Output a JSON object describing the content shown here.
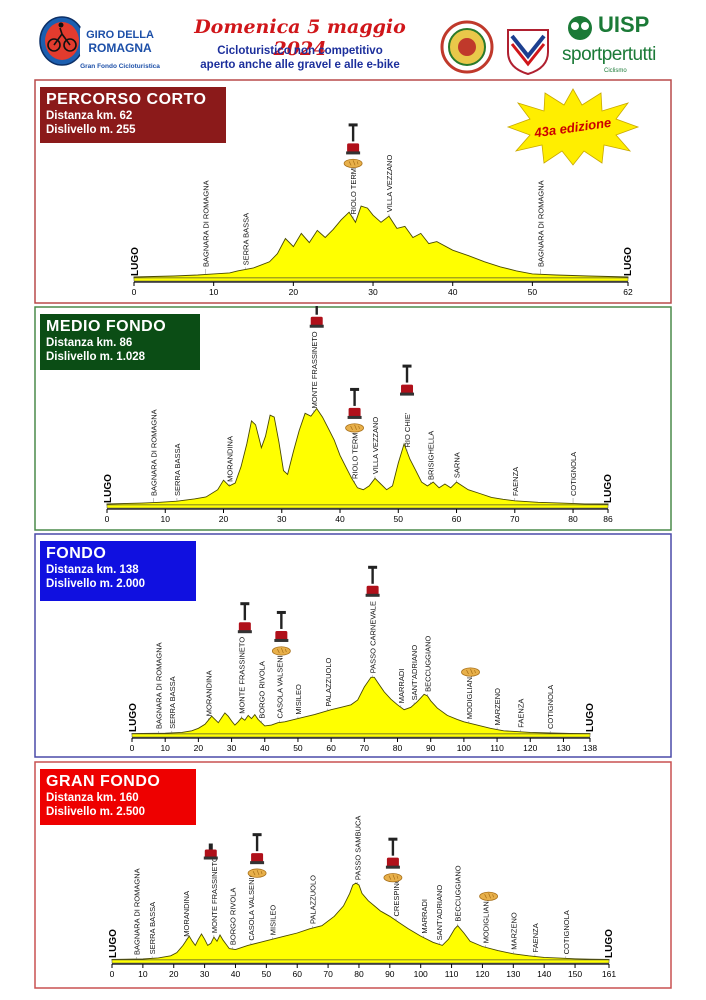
{
  "header": {
    "logo_text": "GIRO DELLA ROMAGNA",
    "logo_subtext": "Gran Fondo Cicloturistica",
    "date": "Domenica 5 maggio 2024",
    "subtitle_line1": "Cicloturistico non competitivo",
    "subtitle_line2": "aperto anche alle gravel e alle e-bike",
    "uisp_word": "UISP",
    "uisp_tagline": "sportpertutti",
    "uisp_small": "Ciclismo"
  },
  "badge": {
    "edition": "43a edizione",
    "color": "#ffee00",
    "text_color": "#cc0000"
  },
  "colors": {
    "profile_fill": "#ffff00",
    "profile_stroke": "#4a4a00",
    "axis": "#000000"
  },
  "chart_data": [
    {
      "type": "area",
      "title": "PERCORSO CORTO",
      "distance": "Distanza km. 62",
      "elevation_gain": "Dislivello  m. 255",
      "panel_color": "#8b1a1a",
      "border_color": "#b84a4a",
      "start_label": "LUGO",
      "end_label": "LUGO",
      "xlim": [
        0,
        62
      ],
      "ticks": [
        0,
        10,
        20,
        30,
        40,
        50,
        62
      ],
      "profile_max": 160,
      "profile": [
        [
          0,
          2
        ],
        [
          5,
          4
        ],
        [
          8,
          6
        ],
        [
          10,
          8
        ],
        [
          12,
          10
        ],
        [
          13,
          14
        ],
        [
          15,
          20
        ],
        [
          17,
          32
        ],
        [
          18,
          48
        ],
        [
          19,
          78
        ],
        [
          20,
          62
        ],
        [
          21,
          88
        ],
        [
          22,
          70
        ],
        [
          23,
          94
        ],
        [
          24,
          80
        ],
        [
          25,
          96
        ],
        [
          26,
          115
        ],
        [
          27,
          130
        ],
        [
          27.8,
          110
        ],
        [
          28.5,
          142
        ],
        [
          29.3,
          138
        ],
        [
          30,
          124
        ],
        [
          31,
          110
        ],
        [
          32,
          122
        ],
        [
          33,
          98
        ],
        [
          34,
          102
        ],
        [
          35,
          80
        ],
        [
          36,
          88
        ],
        [
          37,
          68
        ],
        [
          38,
          72
        ],
        [
          40,
          55
        ],
        [
          42,
          44
        ],
        [
          44,
          32
        ],
        [
          46,
          22
        ],
        [
          48,
          14
        ],
        [
          50,
          8
        ],
        [
          53,
          6
        ],
        [
          57,
          4
        ],
        [
          62,
          2
        ]
      ],
      "places": [
        {
          "name": "BAGNARA DI ROMAGNA",
          "km": 9
        },
        {
          "name": "SERRA BASSA",
          "km": 14
        },
        {
          "name": "RIOLO TERME",
          "km": 27.5
        },
        {
          "name": "VILLA VEZZANO",
          "km": 32
        },
        {
          "name": "BAGNARA DI ROMAGNA",
          "km": 51
        }
      ],
      "pumps": [
        27.5
      ],
      "breads": [
        27.5
      ]
    },
    {
      "type": "area",
      "title": "MEDIO FONDO",
      "distance": "Distanza km. 86",
      "elevation_gain": "Dislivello  m. 1.028",
      "panel_color": "#0b4d15",
      "border_color": "#4a8a4a",
      "start_label": "LUGO",
      "end_label": "LUGO",
      "xlim": [
        0,
        86
      ],
      "ticks": [
        0,
        10,
        20,
        30,
        40,
        50,
        60,
        70,
        80,
        86
      ],
      "profile_max": 560,
      "profile": [
        [
          0,
          5
        ],
        [
          6,
          10
        ],
        [
          9,
          14
        ],
        [
          12,
          20
        ],
        [
          15,
          32
        ],
        [
          17,
          42
        ],
        [
          19,
          80
        ],
        [
          20,
          130
        ],
        [
          21,
          100
        ],
        [
          22,
          115
        ],
        [
          23,
          200
        ],
        [
          24,
          320
        ],
        [
          24.8,
          440
        ],
        [
          25.5,
          420
        ],
        [
          26.5,
          300
        ],
        [
          27.2,
          360
        ],
        [
          28,
          470
        ],
        [
          28.7,
          460
        ],
        [
          29.5,
          330
        ],
        [
          30.3,
          180
        ],
        [
          31,
          160
        ],
        [
          32,
          280
        ],
        [
          33,
          390
        ],
        [
          34,
          480
        ],
        [
          35,
          465
        ],
        [
          36,
          505
        ],
        [
          37,
          460
        ],
        [
          38,
          400
        ],
        [
          39,
          340
        ],
        [
          40,
          260
        ],
        [
          41,
          200
        ],
        [
          42,
          140
        ],
        [
          43,
          90
        ],
        [
          44,
          80
        ],
        [
          45,
          100
        ],
        [
          46,
          140
        ],
        [
          47,
          110
        ],
        [
          48,
          80
        ],
        [
          49,
          100
        ],
        [
          50,
          220
        ],
        [
          51,
          320
        ],
        [
          52,
          240
        ],
        [
          53,
          180
        ],
        [
          54,
          120
        ],
        [
          55,
          100
        ],
        [
          56,
          120
        ],
        [
          57,
          90
        ],
        [
          58,
          110
        ],
        [
          59,
          90
        ],
        [
          60,
          120
        ],
        [
          62,
          80
        ],
        [
          64,
          60
        ],
        [
          66,
          40
        ],
        [
          68,
          30
        ],
        [
          70,
          22
        ],
        [
          74,
          14
        ],
        [
          78,
          10
        ],
        [
          82,
          6
        ],
        [
          86,
          5
        ]
      ],
      "places": [
        {
          "name": "BAGNARA DI ROMAGNA",
          "km": 8
        },
        {
          "name": "SERRA BASSA",
          "km": 12
        },
        {
          "name": "MORANDINA",
          "km": 21
        },
        {
          "name": "MONTE FRASSINETO",
          "km": 35.5
        },
        {
          "name": "RIOLO TERME",
          "km": 42.5
        },
        {
          "name": "VILLA VEZZANO",
          "km": 46
        },
        {
          "name": "RIO CHIE'",
          "km": 51.5
        },
        {
          "name": "BRISIGHELLA",
          "km": 55.5
        },
        {
          "name": "SARNA",
          "km": 60
        },
        {
          "name": "FAENZA",
          "km": 70
        },
        {
          "name": "COTIGNOLA",
          "km": 80
        }
      ],
      "pumps": [
        36,
        42.5,
        51.5
      ],
      "breads": [
        42.5
      ]
    },
    {
      "type": "area",
      "title": "FONDO",
      "distance": "Distanza km. 138",
      "elevation_gain": "Dislivello  m. 2.000",
      "panel_color": "#1010e0",
      "border_color": "#4a4aa8",
      "start_label": "LUGO",
      "end_label": "LUGO",
      "xlim": [
        0,
        138
      ],
      "ticks": [
        0,
        10,
        20,
        30,
        40,
        50,
        60,
        70,
        80,
        90,
        100,
        110,
        120,
        130,
        138
      ],
      "profile_max": 1000,
      "profile": [
        [
          0,
          5
        ],
        [
          10,
          10
        ],
        [
          15,
          20
        ],
        [
          18,
          40
        ],
        [
          20,
          70
        ],
        [
          22,
          120
        ],
        [
          24,
          220
        ],
        [
          25,
          180
        ],
        [
          26,
          140
        ],
        [
          27,
          200
        ],
        [
          28,
          260
        ],
        [
          29,
          220
        ],
        [
          30,
          160
        ],
        [
          31,
          110
        ],
        [
          32,
          150
        ],
        [
          33,
          200
        ],
        [
          34,
          170
        ],
        [
          35,
          230
        ],
        [
          36,
          190
        ],
        [
          37,
          240
        ],
        [
          38,
          180
        ],
        [
          39,
          140
        ],
        [
          40,
          100
        ],
        [
          42,
          110
        ],
        [
          44,
          140
        ],
        [
          46,
          150
        ],
        [
          50,
          190
        ],
        [
          55,
          240
        ],
        [
          60,
          300
        ],
        [
          63,
          330
        ],
        [
          66,
          360
        ],
        [
          68,
          420
        ],
        [
          70,
          580
        ],
        [
          72,
          700
        ],
        [
          73,
          700
        ],
        [
          74,
          640
        ],
        [
          76,
          520
        ],
        [
          78,
          430
        ],
        [
          80,
          360
        ],
        [
          82,
          300
        ],
        [
          84,
          330
        ],
        [
          86,
          400
        ],
        [
          88,
          490
        ],
        [
          89,
          470
        ],
        [
          90,
          410
        ],
        [
          92,
          320
        ],
        [
          95,
          230
        ],
        [
          98,
          180
        ],
        [
          100,
          150
        ],
        [
          104,
          110
        ],
        [
          108,
          70
        ],
        [
          112,
          40
        ],
        [
          116,
          30
        ],
        [
          120,
          20
        ],
        [
          126,
          12
        ],
        [
          132,
          8
        ],
        [
          138,
          5
        ]
      ],
      "places": [
        {
          "name": "BAGNARA DI ROMAGNA",
          "km": 8
        },
        {
          "name": "SERRA BASSA",
          "km": 12
        },
        {
          "name": "MORANDINA",
          "km": 23
        },
        {
          "name": "MONTE FRASSINETO",
          "km": 33
        },
        {
          "name": "BORGO RIVOLA",
          "km": 39
        },
        {
          "name": "CASOLA VALSENIO",
          "km": 44.5
        },
        {
          "name": "MISILEO",
          "km": 50
        },
        {
          "name": "PALAZZUOLO",
          "km": 59
        },
        {
          "name": "PASSO CARNEVALE",
          "km": 72.5
        },
        {
          "name": "MARRADI",
          "km": 81
        },
        {
          "name": "SANT'ADRIANO",
          "km": 85
        },
        {
          "name": "BECCUGGIANO",
          "km": 89
        },
        {
          "name": "MODIGLIANA",
          "km": 101.5
        },
        {
          "name": "MARZENO",
          "km": 110
        },
        {
          "name": "FAENZA",
          "km": 117
        },
        {
          "name": "COTIGNOLA",
          "km": 126
        }
      ],
      "pumps": [
        34,
        45,
        72.5
      ],
      "breads": [
        45,
        102
      ]
    },
    {
      "type": "area",
      "title": "GRAN FONDO",
      "distance": "Distanza km. 160",
      "elevation_gain": "Dislivello  m. 2.500",
      "panel_color": "#ee0000",
      "border_color": "#c85050",
      "start_label": "LUGO",
      "end_label": "LUGO",
      "xlim": [
        0,
        161
      ],
      "ticks": [
        0,
        10,
        20,
        30,
        40,
        50,
        60,
        70,
        80,
        90,
        100,
        110,
        120,
        130,
        140,
        150,
        161
      ],
      "profile_max": 1000,
      "profile": [
        [
          0,
          5
        ],
        [
          10,
          10
        ],
        [
          15,
          20
        ],
        [
          19,
          40
        ],
        [
          21,
          70
        ],
        [
          23,
          140
        ],
        [
          25,
          230
        ],
        [
          26,
          180
        ],
        [
          27,
          140
        ],
        [
          28,
          200
        ],
        [
          29,
          250
        ],
        [
          30,
          200
        ],
        [
          31,
          140
        ],
        [
          32,
          160
        ],
        [
          33,
          220
        ],
        [
          34,
          180
        ],
        [
          35,
          240
        ],
        [
          36,
          190
        ],
        [
          37,
          150
        ],
        [
          38,
          110
        ],
        [
          40,
          100
        ],
        [
          44,
          140
        ],
        [
          48,
          170
        ],
        [
          52,
          200
        ],
        [
          56,
          230
        ],
        [
          60,
          260
        ],
        [
          64,
          300
        ],
        [
          68,
          330
        ],
        [
          72,
          420
        ],
        [
          75,
          520
        ],
        [
          77,
          640
        ],
        [
          78,
          720
        ],
        [
          79,
          740
        ],
        [
          80,
          720
        ],
        [
          81,
          640
        ],
        [
          83,
          570
        ],
        [
          85,
          520
        ],
        [
          87,
          470
        ],
        [
          90,
          420
        ],
        [
          93,
          360
        ],
        [
          96,
          300
        ],
        [
          100,
          230
        ],
        [
          104,
          170
        ],
        [
          107,
          140
        ],
        [
          109,
          200
        ],
        [
          111,
          300
        ],
        [
          112,
          330
        ],
        [
          114,
          260
        ],
        [
          116,
          180
        ],
        [
          120,
          130
        ],
        [
          125,
          90
        ],
        [
          130,
          60
        ],
        [
          135,
          40
        ],
        [
          140,
          25
        ],
        [
          145,
          18
        ],
        [
          150,
          12
        ],
        [
          155,
          8
        ],
        [
          161,
          5
        ]
      ],
      "places": [
        {
          "name": "BAGNARA DI ROMAGNA",
          "km": 8
        },
        {
          "name": "SERRA BASSA",
          "km": 13
        },
        {
          "name": "MORANDINA",
          "km": 24
        },
        {
          "name": "MONTE FRASSINETO",
          "km": 33
        },
        {
          "name": "BORGO RIVOLA",
          "km": 39
        },
        {
          "name": "CASOLA VALSENIO",
          "km": 45
        },
        {
          "name": "MISILEO",
          "km": 52
        },
        {
          "name": "PALAZZUOLO",
          "km": 65
        },
        {
          "name": "PASSO SAMBUCA",
          "km": 79.5
        },
        {
          "name": "CRESPINO",
          "km": 92
        },
        {
          "name": "MARRADI",
          "km": 101
        },
        {
          "name": "SANT'ADRIANO",
          "km": 106
        },
        {
          "name": "BECCUGGIANO",
          "km": 112
        },
        {
          "name": "MODIGLIANA",
          "km": 121
        },
        {
          "name": "MARZENO",
          "km": 130
        },
        {
          "name": "FAENZA",
          "km": 137
        },
        {
          "name": "COTIGNOLA",
          "km": 147
        }
      ],
      "pumps": [
        47,
        91
      ],
      "stamps": [
        32
      ],
      "breads": [
        47,
        91,
        122
      ]
    }
  ]
}
